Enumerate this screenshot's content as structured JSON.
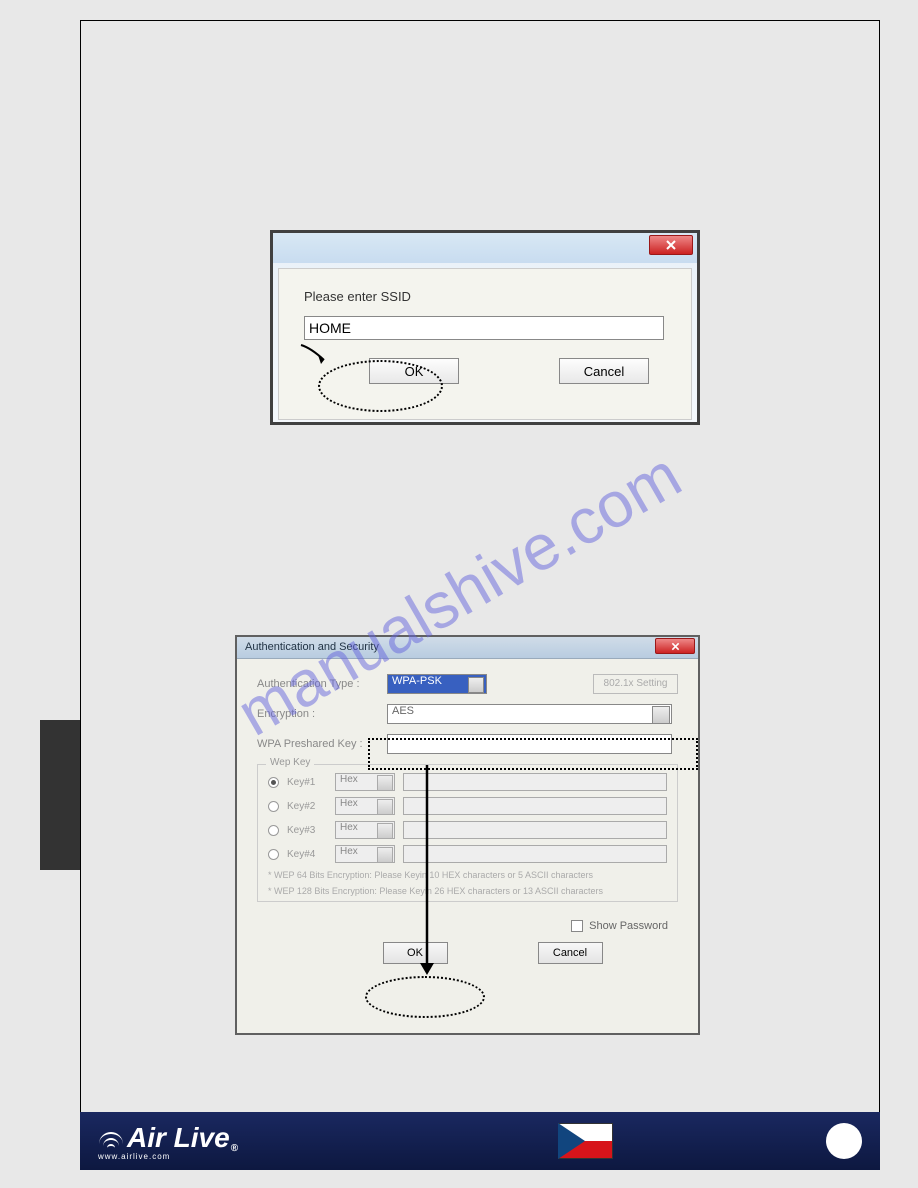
{
  "watermark": "manualshive.com",
  "dialog1": {
    "prompt": "Please enter SSID",
    "input_value": "HOME",
    "ok_label": "OK",
    "cancel_label": "Cancel"
  },
  "dialog2": {
    "title": "Authentication and Security",
    "auth_type_label": "Authentication Type :",
    "auth_type_value": "WPA-PSK",
    "x802_label": "802.1x Setting",
    "encryption_label": "Encryption :",
    "encryption_value": "AES",
    "psk_label": "WPA Preshared Key :",
    "psk_value": "",
    "wep_legend": "Wep Key",
    "keys": [
      {
        "label": "Key#1",
        "hex": "Hex",
        "selected": true
      },
      {
        "label": "Key#2",
        "hex": "Hex",
        "selected": false
      },
      {
        "label": "Key#3",
        "hex": "Hex",
        "selected": false
      },
      {
        "label": "Key#4",
        "hex": "Hex",
        "selected": false
      }
    ],
    "note1": "* WEP 64 Bits Encryption:  Please Keyin 10 HEX characters or 5 ASCII characters",
    "note2": "* WEP 128 Bits Encryption:  Please Keyin 26 HEX characters or 13 ASCII characters",
    "show_pw_label": "Show Password",
    "ok_label": "OK",
    "cancel_label": "Cancel"
  },
  "footer": {
    "brand": "Air Live",
    "url": "www.airlive.com",
    "flag_colors": {
      "top": "#ffffff",
      "bottom": "#d7141a",
      "triangle": "#11457e"
    }
  },
  "colors": {
    "page_bg": "#e8e8e8",
    "footer_bg": "#12205a",
    "watermark": "#6464dc",
    "close_btn": "#cc2222",
    "auth_select_bg": "#3860c0",
    "emphasis": "#000000"
  }
}
